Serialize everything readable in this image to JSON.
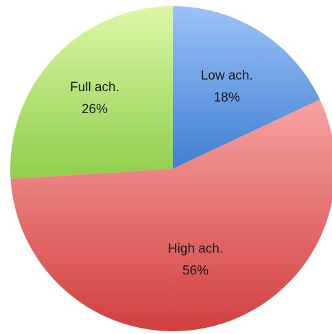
{
  "chart_data": {
    "type": "pie",
    "title": "",
    "slices": [
      {
        "label": "Low ach.",
        "value": 18,
        "display": "18%",
        "color_top": "#9cc2f7",
        "color_bottom": "#3f7fd1"
      },
      {
        "label": "High ach.",
        "value": 56,
        "display": "56%",
        "color_top": "#f7a3a3",
        "color_bottom": "#d23f3f"
      },
      {
        "label": "Full ach.",
        "value": 26,
        "display": "26%",
        "color_top": "#dcf7a8",
        "color_bottom": "#8fce4a"
      }
    ],
    "start_angle_deg": 0,
    "direction": "clockwise",
    "legend": "none",
    "data_labels": "inside"
  }
}
